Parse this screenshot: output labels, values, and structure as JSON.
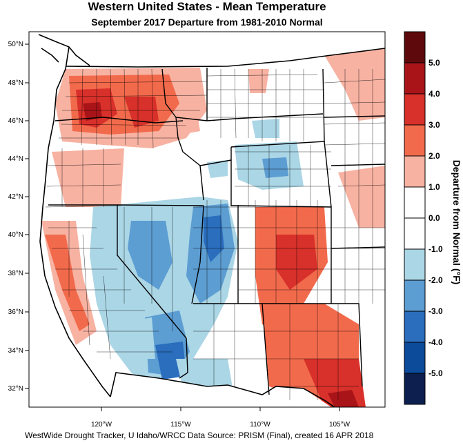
{
  "title": "Western United States - Mean Temperature",
  "subtitle": "September 2017  Departure from 1981-2010 Normal",
  "footer": "WestWide Drought Tracker, U Idaho/WRCC Data Source: PRISM (Final), created 16 APR 2018",
  "lat_ticks": [
    "50°N",
    "48°N",
    "46°N",
    "44°N",
    "42°N",
    "40°N",
    "38°N",
    "36°N",
    "34°N",
    "32°N"
  ],
  "lon_ticks": [
    "120°W",
    "115°W",
    "110°W",
    "105°W"
  ],
  "legend": {
    "title": "Departure from Normal (°F)",
    "labels": [
      "5.0",
      "4.0",
      "3.0",
      "2.0",
      "1.0",
      "0.0",
      "-1.0",
      "-2.0",
      "-3.0",
      "-4.0",
      "-5.0"
    ],
    "colors": [
      "#5e0a0c",
      "#a81418",
      "#d8302a",
      "#f26a4c",
      "#f7b2a2",
      "#ffffff",
      "#ffffff",
      "#abd6e6",
      "#5c9dd2",
      "#2a6ebd",
      "#0c4a9a",
      "#0c1f4e"
    ]
  }
}
